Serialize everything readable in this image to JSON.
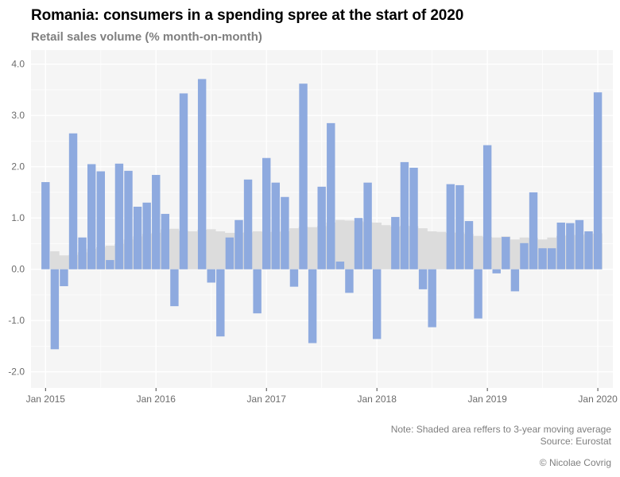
{
  "header": {
    "title": "Romania: consumers in a spending spree at the start of 2020",
    "subtitle": "Retail sales volume (% month-on-month)"
  },
  "footer": {
    "note": "Note: Shaded area reffers to 3-year moving average",
    "source": "Source: Eurostat",
    "credit": "© Nicolae Covrig"
  },
  "colors": {
    "bars": "#8eaadf",
    "moving_average": "#dcdcdc",
    "panel_background": "#f5f5f5",
    "gridline": "#ffffff"
  },
  "chart_data": {
    "type": "bar",
    "title": "Romania: consumers in a spending spree at the start of 2020",
    "subtitle": "Retail sales volume (% month-on-month)",
    "xlabel": "",
    "ylabel": "",
    "ylim": [
      -2.3,
      4.3
    ],
    "yticks": [
      4.0,
      3.0,
      2.0,
      1.0,
      0.0,
      -1.0,
      -2.0
    ],
    "ytick_labels": [
      "4.0",
      "3.0",
      "2.0",
      "1.0",
      "0.0",
      "-1.0",
      "-2.0"
    ],
    "xtick_labels": [
      "Jan 2015",
      "Jan 2016",
      "Jan 2017",
      "Jan 2018",
      "Jan 2019",
      "Jan 2020"
    ],
    "xtick_month_index": [
      0,
      12,
      24,
      36,
      48,
      60
    ],
    "grid": true,
    "legend": "none",
    "categories": [
      "Jan 2015",
      "Feb 2015",
      "Mar 2015",
      "Apr 2015",
      "May 2015",
      "Jun 2015",
      "Jul 2015",
      "Aug 2015",
      "Sep 2015",
      "Oct 2015",
      "Nov 2015",
      "Dec 2015",
      "Jan 2016",
      "Feb 2016",
      "Mar 2016",
      "Apr 2016",
      "May 2016",
      "Jun 2016",
      "Jul 2016",
      "Aug 2016",
      "Sep 2016",
      "Oct 2016",
      "Nov 2016",
      "Dec 2016",
      "Jan 2017",
      "Feb 2017",
      "Mar 2017",
      "Apr 2017",
      "May 2017",
      "Jun 2017",
      "Jul 2017",
      "Aug 2017",
      "Sep 2017",
      "Oct 2017",
      "Nov 2017",
      "Dec 2017",
      "Jan 2018",
      "Feb 2018",
      "Mar 2018",
      "Apr 2018",
      "May 2018",
      "Jun 2018",
      "Jul 2018",
      "Aug 2018",
      "Sep 2018",
      "Oct 2018",
      "Nov 2018",
      "Dec 2018",
      "Jan 2019",
      "Feb 2019",
      "Mar 2019",
      "Apr 2019",
      "May 2019",
      "Jun 2019",
      "Jul 2019",
      "Aug 2019",
      "Sep 2019",
      "Oct 2019",
      "Nov 2019",
      "Dec 2019",
      "Jan 2020"
    ],
    "series": [
      {
        "name": "Retail sales volume (% m/m)",
        "type": "bar",
        "values": [
          1.7,
          -1.56,
          -0.33,
          2.65,
          0.62,
          2.05,
          1.91,
          0.18,
          2.06,
          1.92,
          1.22,
          1.3,
          1.84,
          1.08,
          -0.72,
          3.43,
          0.0,
          3.71,
          -0.26,
          -1.31,
          0.62,
          0.96,
          1.75,
          -0.86,
          2.17,
          1.69,
          1.41,
          -0.34,
          3.62,
          -1.44,
          1.61,
          2.85,
          0.15,
          -0.46,
          1.0,
          1.69,
          -1.36,
          0.0,
          1.02,
          2.09,
          1.98,
          -0.39,
          -1.13,
          0.0,
          1.66,
          1.64,
          0.94,
          -0.96,
          2.42,
          -0.08,
          0.63,
          -0.43,
          0.51,
          1.5,
          0.41,
          0.41,
          0.91,
          0.9,
          0.96,
          0.74,
          3.45
        ]
      },
      {
        "name": "3-year moving average",
        "type": "area",
        "values": [
          null,
          0.35,
          0.27,
          0.28,
          0.33,
          0.4,
          0.43,
          0.46,
          0.5,
          0.58,
          0.64,
          0.69,
          0.71,
          0.78,
          0.79,
          0.75,
          0.74,
          0.77,
          0.78,
          0.74,
          0.71,
          0.71,
          0.72,
          0.74,
          0.73,
          0.73,
          0.74,
          0.8,
          0.83,
          0.82,
          0.84,
          0.91,
          0.96,
          0.95,
          0.94,
          0.92,
          0.91,
          0.86,
          0.83,
          0.85,
          0.84,
          0.8,
          0.74,
          0.73,
          0.71,
          0.72,
          0.69,
          0.65,
          0.63,
          0.62,
          0.64,
          0.58,
          0.62,
          0.61,
          0.58,
          0.62,
          0.65,
          0.67,
          0.67,
          0.69,
          0.7
        ]
      }
    ]
  }
}
